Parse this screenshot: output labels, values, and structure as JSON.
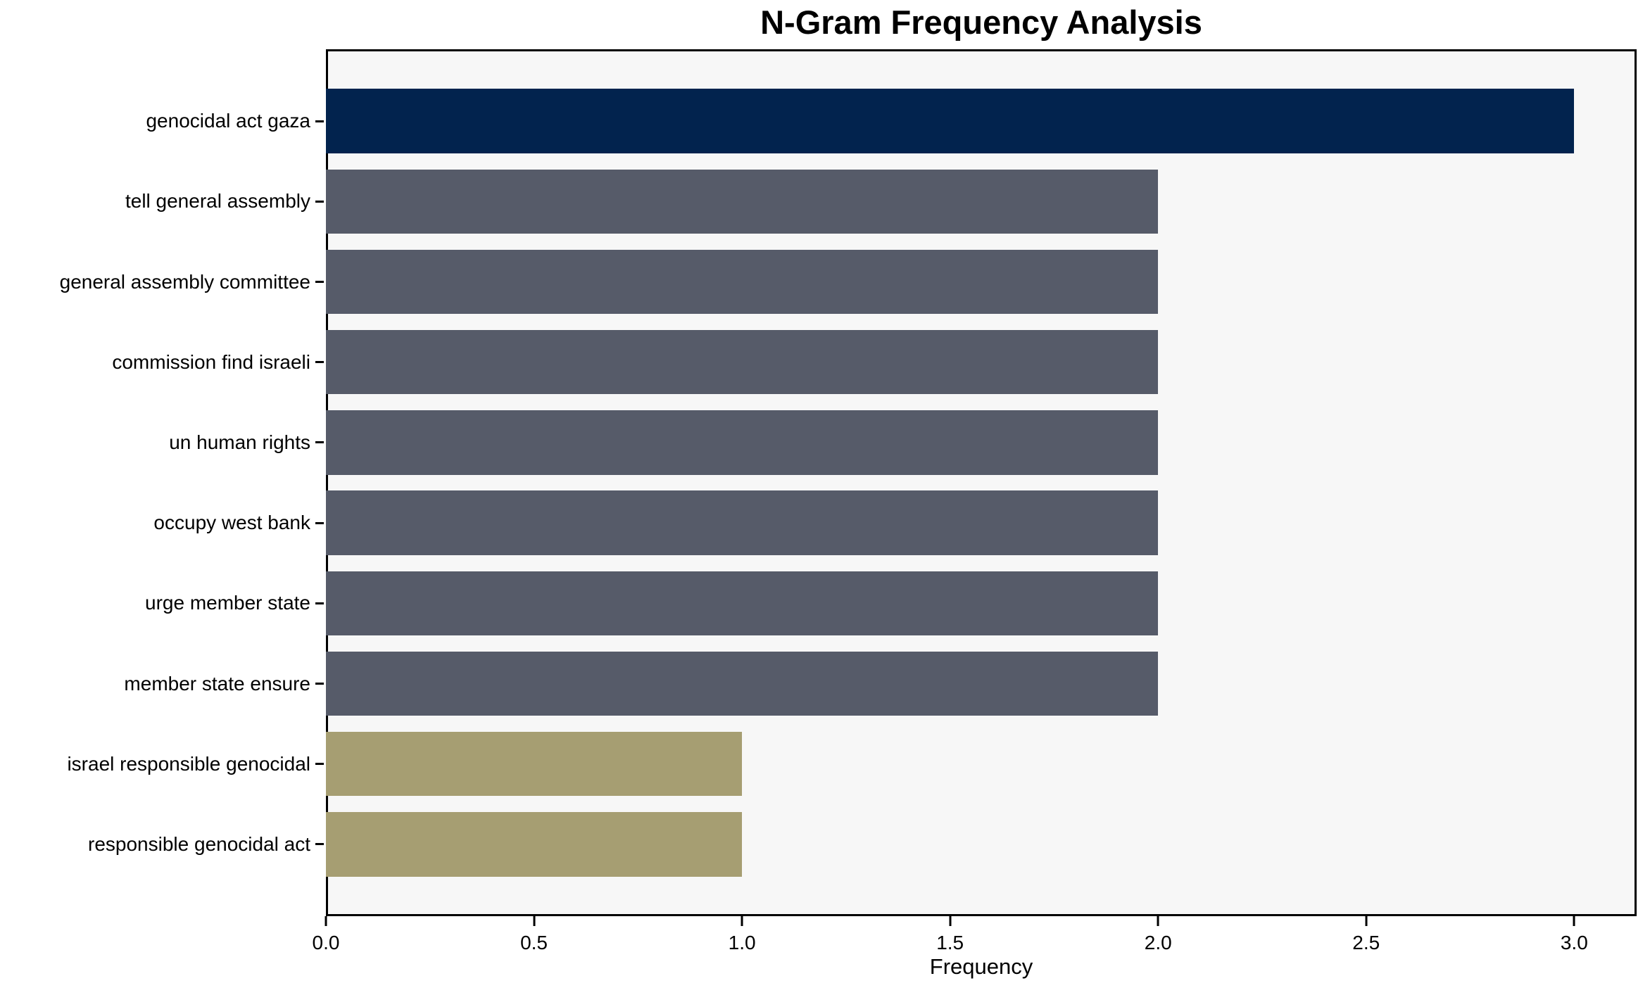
{
  "chart_data": {
    "type": "bar",
    "orientation": "horizontal",
    "title": "N-Gram Frequency Analysis",
    "xlabel": "Frequency",
    "ylabel": "",
    "categories": [
      "genocidal act gaza",
      "tell general assembly",
      "general assembly committee",
      "commission find israeli",
      "un human rights",
      "occupy west bank",
      "urge member state",
      "member state ensure",
      "israel responsible genocidal",
      "responsible genocidal act"
    ],
    "values": [
      3,
      2,
      2,
      2,
      2,
      2,
      2,
      2,
      1,
      1
    ],
    "bar_colors": [
      "#02234e",
      "#565b69",
      "#565b69",
      "#565b69",
      "#565b69",
      "#565b69",
      "#565b69",
      "#565b69",
      "#a69e72",
      "#a69e72"
    ],
    "xlim": [
      0,
      3.15
    ],
    "x_tick_values": [
      0,
      0.5,
      1,
      1.5,
      2,
      2.5,
      3
    ],
    "x_tick_labels": [
      "0.0",
      "0.5",
      "1.0",
      "1.5",
      "2.0",
      "2.5",
      "3.0"
    ],
    "grid": false,
    "legend": null,
    "colors": {
      "plot_background": "#f7f7f7",
      "figure_background": "#ffffff",
      "spine": "#000000",
      "text": "#000000",
      "value_3_color": "#02234e",
      "value_2_color": "#565b69",
      "value_1_color": "#a69e72"
    }
  }
}
